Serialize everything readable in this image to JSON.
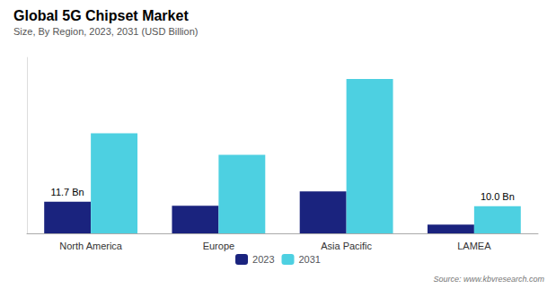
{
  "chart_data": {
    "type": "bar",
    "title": "Global 5G Chipset Market",
    "subtitle": "Size, By Region, 2023, 2031 (USD Billion)",
    "source": "Source: www.kbvresearch.com",
    "categories": [
      "North America",
      "Europe",
      "Asia Pacific",
      "LAMEA"
    ],
    "series": [
      {
        "name": "2023",
        "color": "#1a237e",
        "values": [
          11.7,
          10.2,
          15.5,
          3.2
        ],
        "value_labels": [
          "11.7 Bn",
          null,
          null,
          null
        ]
      },
      {
        "name": "2031",
        "color": "#4dd0e1",
        "values": [
          37.0,
          29.0,
          57.0,
          10.0
        ],
        "value_labels": [
          null,
          null,
          null,
          "10.0 Bn"
        ]
      }
    ],
    "ylim": [
      0,
      65
    ],
    "tick_labels": "x",
    "grid": false,
    "legend": "bottom"
  }
}
